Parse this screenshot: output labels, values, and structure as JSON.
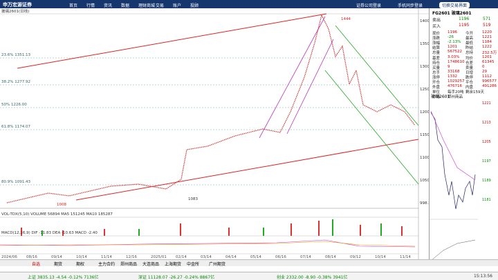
{
  "header": {
    "logo": "申万宏源证券",
    "menu": [
      "首页",
      "行情",
      "资讯",
      "数据",
      "理财商城",
      "交易",
      "账户",
      "投顾"
    ],
    "links": [
      "证券公司登录",
      "手机同步登录",
      "切换交易界面"
    ]
  },
  "chart": {
    "title": "玻璃2601(日线)",
    "peak": "1444",
    "low": "1008",
    "mid": "1083",
    "fib": [
      "23.6% 1351.13",
      "38.2% 1277.92",
      "50% 1226.00",
      "61.8% 1174.07",
      "80.9% 1091.43"
    ],
    "axis": [
      "1400",
      "1350",
      "1300",
      "1250",
      "1200",
      "1150",
      "1100",
      "1050",
      "998.3"
    ],
    "dates": [
      "2024/06",
      "08/16",
      "09/14",
      "10/14",
      "11/14",
      "12/16",
      "2025/01",
      "02/14",
      "03/14",
      "04/14",
      "05/14",
      "06/16",
      "07/14",
      "08/14",
      "09/12",
      "10/14",
      "11/14"
    ],
    "volume": "VOL-TDX(5,10) VOLUME 56894 MA5 151245 MA10 185287",
    "macd": "MACD(12,26,9) DIF -11.83 DEA -10.63 MACD -2.40"
  },
  "quote": {
    "title": "FG2601 玻璃2601",
    "book": [
      [
        "卖出",
        "1196",
        "571"
      ],
      [
        "买入",
        "1195",
        "519"
      ]
    ],
    "rows": [
      [
        "现价",
        "1196",
        "今开",
        "1220"
      ],
      [
        "涨跌",
        "-26",
        "最高",
        "1221"
      ],
      [
        "涨幅",
        "-2.13%",
        "最低",
        "1184"
      ],
      [
        "结算",
        "1201",
        "昨结",
        "1222"
      ],
      [
        "总量",
        "567522",
        "总持",
        "232.5万"
      ],
      [
        "基差",
        "3.03%",
        "均价",
        "1201"
      ],
      [
        "持仓",
        "1748610",
        "仓差",
        "61345"
      ],
      [
        "买量",
        "9",
        "卖量",
        "0"
      ],
      [
        "总手",
        "33168",
        "日增",
        "29"
      ],
      [
        "涨停",
        "1332",
        "跌停",
        "1112"
      ],
      [
        "开仓",
        "1029257",
        "平仓",
        "996577"
      ],
      [
        "外盘",
        "476716",
        "内盘",
        "491286"
      ],
      [
        "单位",
        "每手20吨",
        "剩余159天",
        ""
      ],
      [
        "市场",
        "郑州商品",
        "",
        ""
      ]
    ],
    "mini_title": "玻璃2601",
    "mini_axis": [
      "1221",
      "1213",
      "1205",
      "1197",
      "1189",
      "1181"
    ]
  },
  "tabs": [
    "自选",
    "期货",
    "期权",
    "主力合约",
    "郑州商品",
    "大连商品",
    "上海期货",
    "中金所",
    "广州期货"
  ],
  "status": [
    "上证 3835.13 -4.54 -0.12% 7136亿",
    "深证 11128.07 -26.27 -0.24% 8867亿",
    "创业 2332.00 -8.90 -0.38% 3941亿",
    "15:13:56"
  ]
}
